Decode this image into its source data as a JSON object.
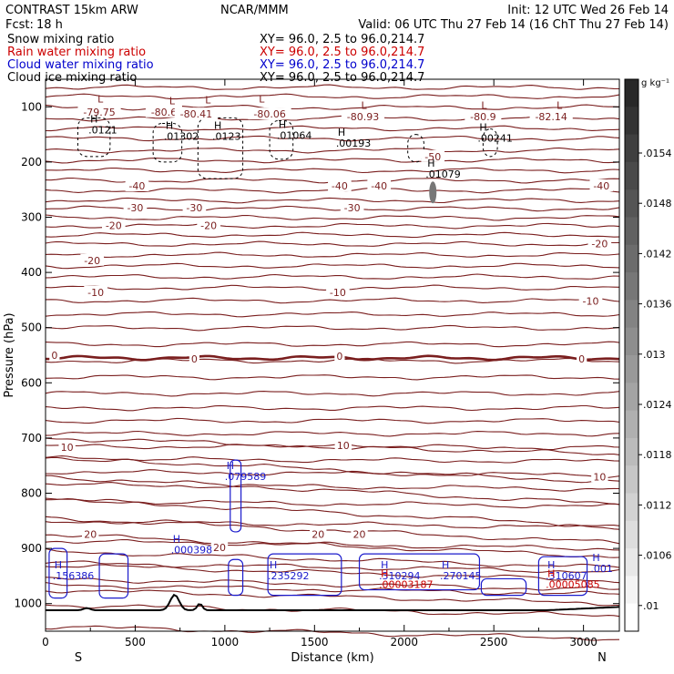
{
  "header": {
    "model": "CONTRAST 15km ARW",
    "source": "NCAR/MMM",
    "init": "Init: 12 UTC Wed 26 Feb 14",
    "fcst_label": "Fcst:",
    "fcst_value": "18 h",
    "valid": "Valid: 06 UTC Thu 27 Feb 14 (16 ChT Thu 27 Feb 14)",
    "fields": [
      {
        "name": "Snow mixing ratio",
        "xy": "XY=  96.0,  2.5 to  96.0,214.7",
        "color": "#000000"
      },
      {
        "name": "Rain water mixing ratio",
        "xy": "XY=  96.0,  2.5 to  96.0,214.7",
        "color": "#cc0000"
      },
      {
        "name": "Cloud water mixing ratio",
        "xy": "XY=  96.0,  2.5 to  96.0,214.7",
        "color": "#0000cc"
      },
      {
        "name": "Cloud ice mixing ratio",
        "xy": "XY=  96.0,  2.5 to  96.0,214.7",
        "color": "#000000"
      }
    ]
  },
  "chart_data": {
    "type": "contour",
    "xlabel": "Distance (km)",
    "ylabel": "Pressure (hPa)",
    "xlim": [
      0,
      3200
    ],
    "ylim": [
      1050,
      50
    ],
    "xticks": [
      0,
      500,
      1000,
      1500,
      2000,
      2500,
      3000
    ],
    "yticks": [
      100,
      200,
      300,
      400,
      500,
      600,
      700,
      800,
      900,
      1000
    ],
    "x_endpoints": [
      "S",
      "N"
    ],
    "colorbar": {
      "unit": "g kg⁻¹",
      "ticks": [
        ".0154",
        ".0148",
        ".0142",
        ".0136",
        ".013",
        ".0124",
        ".0118",
        ".0112",
        ".0106",
        ".01"
      ]
    },
    "temperature_labels": [
      {
        "x": 300,
        "p": 109,
        "text": "-79.75"
      },
      {
        "x": 660,
        "p": 109,
        "text": "-80.6"
      },
      {
        "x": 840,
        "p": 113,
        "text": "-80.41"
      },
      {
        "x": 1250,
        "p": 113,
        "text": "-80.06"
      },
      {
        "x": 1770,
        "p": 118,
        "text": "-80.93"
      },
      {
        "x": 2440,
        "p": 118,
        "text": "-80.9"
      },
      {
        "x": 2820,
        "p": 118,
        "text": "-82.14"
      },
      {
        "x": 2160,
        "p": 190,
        "text": "-50"
      },
      {
        "x": 510,
        "p": 243,
        "text": "-40"
      },
      {
        "x": 1640,
        "p": 243,
        "text": "-40"
      },
      {
        "x": 1860,
        "p": 243,
        "text": "-40"
      },
      {
        "x": 3100,
        "p": 243,
        "text": "-40"
      },
      {
        "x": 500,
        "p": 283,
        "text": "-30"
      },
      {
        "x": 830,
        "p": 283,
        "text": "-30"
      },
      {
        "x": 1710,
        "p": 283,
        "text": "-30"
      },
      {
        "x": 380,
        "p": 315,
        "text": "-20"
      },
      {
        "x": 910,
        "p": 315,
        "text": "-20"
      },
      {
        "x": 3090,
        "p": 348,
        "text": "-20"
      },
      {
        "x": 260,
        "p": 378,
        "text": "-20"
      },
      {
        "x": 280,
        "p": 436,
        "text": "-10"
      },
      {
        "x": 1630,
        "p": 436,
        "text": "-10"
      },
      {
        "x": 3040,
        "p": 452,
        "text": "-10"
      },
      {
        "x": 50,
        "p": 550,
        "text": "0"
      },
      {
        "x": 830,
        "p": 557,
        "text": "0"
      },
      {
        "x": 1640,
        "p": 552,
        "text": "0"
      },
      {
        "x": 2990,
        "p": 557,
        "text": "0"
      },
      {
        "x": 120,
        "p": 717,
        "text": "10"
      },
      {
        "x": 1660,
        "p": 713,
        "text": "10"
      },
      {
        "x": 3090,
        "p": 770,
        "text": "10"
      },
      {
        "x": 250,
        "p": 874,
        "text": "20"
      },
      {
        "x": 1520,
        "p": 874,
        "text": "20"
      },
      {
        "x": 1750,
        "p": 874,
        "text": "20"
      },
      {
        "x": 970,
        "p": 898,
        "text": "20"
      }
    ],
    "maxima": [
      {
        "x": 280,
        "p": 138,
        "label": ".0121",
        "color": "black"
      },
      {
        "x": 700,
        "p": 150,
        "label": ".01302",
        "color": "black"
      },
      {
        "x": 970,
        "p": 150,
        "label": ".0123",
        "color": "black"
      },
      {
        "x": 1330,
        "p": 148,
        "label": ".01064",
        "color": "black"
      },
      {
        "x": 1660,
        "p": 162,
        "label": ".00193",
        "color": "black"
      },
      {
        "x": 2160,
        "p": 218,
        "label": ".01079",
        "color": "black"
      },
      {
        "x": 2450,
        "p": 153,
        "label": ".00241",
        "color": "black"
      },
      {
        "x": 1040,
        "p": 766,
        "label": ".079589",
        "color": "blue"
      },
      {
        "x": 740,
        "p": 899,
        "label": ".000398",
        "color": "blue"
      },
      {
        "x": 80,
        "p": 946,
        "label": ".156386",
        "color": "blue"
      },
      {
        "x": 1280,
        "p": 946,
        "label": ".235292",
        "color": "blue"
      },
      {
        "x": 1900,
        "p": 946,
        "label": ".310294",
        "color": "blue"
      },
      {
        "x": 2240,
        "p": 946,
        "label": ".270145",
        "color": "blue"
      },
      {
        "x": 2830,
        "p": 946,
        "label": ".310607",
        "color": "blue"
      },
      {
        "x": 1900,
        "p": 962,
        "label": ".00003187",
        "color": "red"
      },
      {
        "x": 2830,
        "p": 962,
        "label": ".00005085",
        "color": "red"
      },
      {
        "x": 3080,
        "p": 933,
        "label": ".001",
        "color": "blue"
      }
    ]
  }
}
